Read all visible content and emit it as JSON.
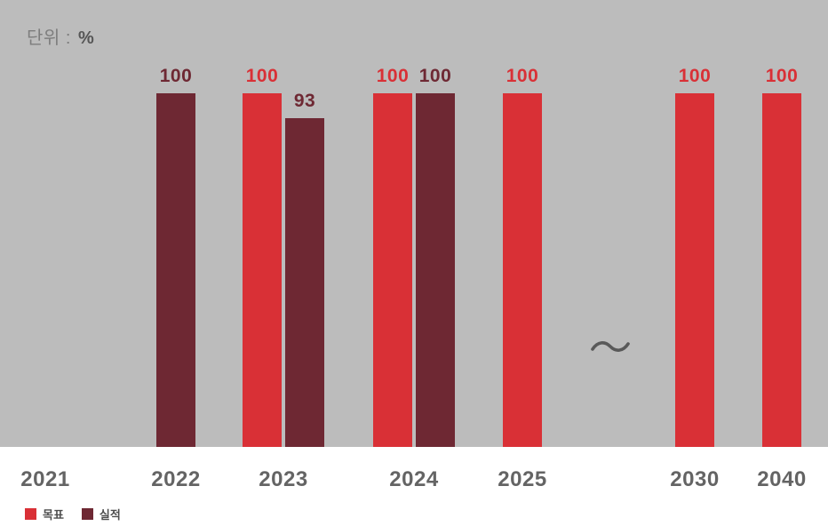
{
  "unit_label": {
    "prefix": "단위 :",
    "value": "%"
  },
  "legend": {
    "items": [
      {
        "key": "target",
        "label": "목표",
        "color": "#d93036"
      },
      {
        "key": "actual",
        "label": "실적",
        "color": "#6e2833"
      }
    ]
  },
  "colors": {
    "target_red": "#d93036",
    "actual_maroon": "#6e2833",
    "plot_background": "#bcbcbc",
    "page_background": "#ffffff",
    "axis_text": "#646464",
    "unit_text": "#7d7d7d",
    "break_mark": "#595959"
  },
  "chart_data": {
    "type": "bar",
    "title": "",
    "unit": "%",
    "ylim": [
      0,
      100
    ],
    "grid": false,
    "legend_position": "bottom-left",
    "axis_break_between": [
      "2025",
      "2030"
    ],
    "categories": [
      "2021",
      "2022",
      "2023",
      "2024",
      "2025",
      "2030",
      "2040"
    ],
    "series": [
      {
        "name": "목표",
        "key": "target",
        "color": "#d93036",
        "values": [
          null,
          null,
          100,
          100,
          100,
          100,
          100
        ]
      },
      {
        "name": "실적",
        "key": "actual",
        "color": "#6e2833",
        "values": [
          null,
          100,
          93,
          100,
          null,
          null,
          null
        ]
      }
    ]
  }
}
